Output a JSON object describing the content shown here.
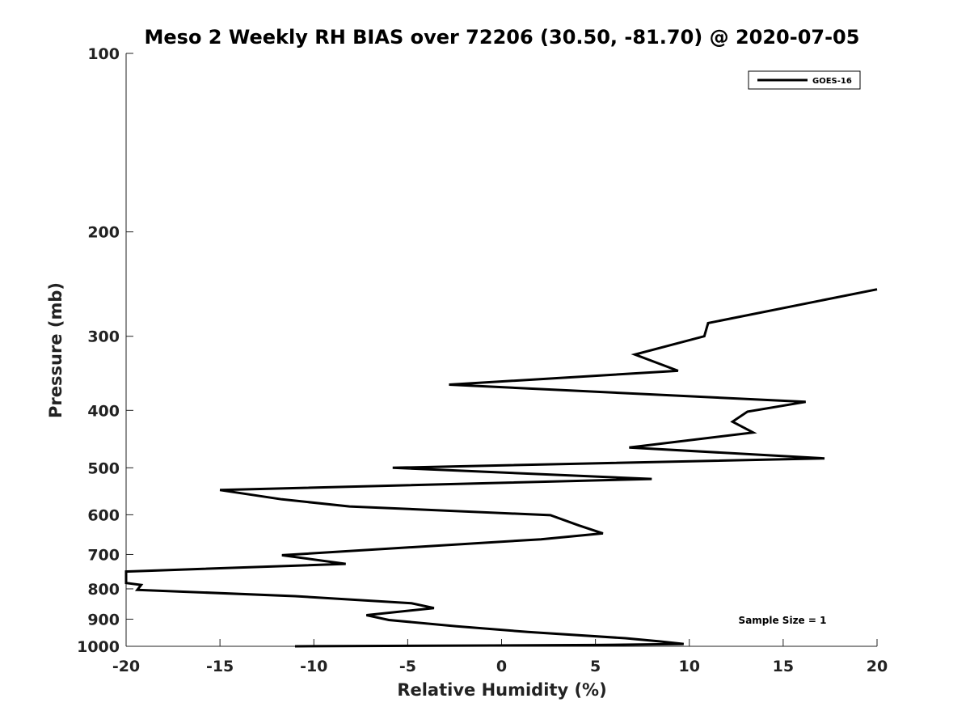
{
  "chart_data": {
    "type": "line",
    "title": "Meso 2 Weekly RH BIAS over 72206 (30.50, -81.70) @ 2020-07-05",
    "xlabel": "Relative Humidity (%)",
    "ylabel": "Pressure (mb)",
    "xlim": [
      -20,
      20
    ],
    "ylim": [
      100,
      1000
    ],
    "y_scale": "log",
    "y_reversed": true,
    "x_ticks": [
      -20,
      -15,
      -10,
      -5,
      0,
      5,
      10,
      15,
      20
    ],
    "x_tick_labels": [
      "-20",
      "-15",
      "-10",
      "-5",
      "0",
      "5",
      "10",
      "15",
      "20"
    ],
    "y_ticks": [
      100,
      200,
      300,
      400,
      500,
      600,
      700,
      800,
      900,
      1000
    ],
    "y_tick_labels": [
      "100",
      "200",
      "300",
      "400",
      "500",
      "600",
      "700",
      "800",
      "900",
      "1000"
    ],
    "grid": false,
    "legend_position": "top-right",
    "annotation": "Sample Size = 1",
    "series": [
      {
        "name": "GOES-16",
        "color": "#000000",
        "points": [
          {
            "x": 20.0,
            "y": 250
          },
          {
            "x": 11.0,
            "y": 285
          },
          {
            "x": 10.8,
            "y": 300
          },
          {
            "x": 7.1,
            "y": 322
          },
          {
            "x": 9.4,
            "y": 343
          },
          {
            "x": -2.8,
            "y": 362
          },
          {
            "x": 16.2,
            "y": 387
          },
          {
            "x": 13.1,
            "y": 402
          },
          {
            "x": 12.3,
            "y": 418
          },
          {
            "x": 13.4,
            "y": 436
          },
          {
            "x": 6.8,
            "y": 462
          },
          {
            "x": 17.2,
            "y": 482
          },
          {
            "x": -5.8,
            "y": 500
          },
          {
            "x": 8.0,
            "y": 522
          },
          {
            "x": -15.0,
            "y": 545
          },
          {
            "x": -11.7,
            "y": 565
          },
          {
            "x": -8.1,
            "y": 581
          },
          {
            "x": 2.6,
            "y": 601
          },
          {
            "x": 4.1,
            "y": 625
          },
          {
            "x": 5.4,
            "y": 645
          },
          {
            "x": 2.1,
            "y": 660
          },
          {
            "x": -11.7,
            "y": 702
          },
          {
            "x": -8.3,
            "y": 726
          },
          {
            "x": -20.0,
            "y": 748
          },
          {
            "x": -20.0,
            "y": 782
          },
          {
            "x": -19.2,
            "y": 788
          },
          {
            "x": -19.4,
            "y": 803
          },
          {
            "x": -11.0,
            "y": 823
          },
          {
            "x": -4.8,
            "y": 846
          },
          {
            "x": -3.6,
            "y": 862
          },
          {
            "x": -7.2,
            "y": 886
          },
          {
            "x": -6.0,
            "y": 903
          },
          {
            "x": -2.4,
            "y": 925
          },
          {
            "x": 1.4,
            "y": 946
          },
          {
            "x": 6.6,
            "y": 969
          },
          {
            "x": 8.4,
            "y": 981
          },
          {
            "x": 9.7,
            "y": 991
          },
          {
            "x": 5.0,
            "y": 995
          },
          {
            "x": -0.5,
            "y": 997
          },
          {
            "x": -11.0,
            "y": 1001
          }
        ]
      }
    ]
  }
}
